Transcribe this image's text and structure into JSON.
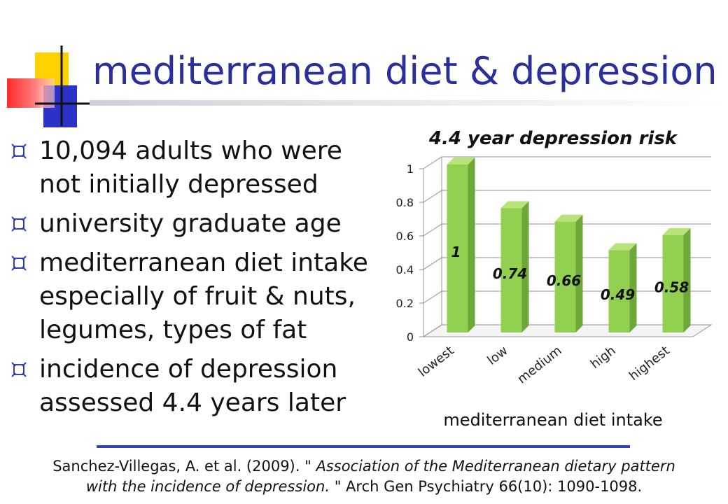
{
  "slide": {
    "title": "mediterranean diet & depression",
    "bullet_icon": "fancy-square-bullet-icon",
    "logo_icon": "color-squares-logo-icon",
    "colors": {
      "title": "#2b2f9c",
      "bar": "#92d050",
      "bar_dark": "#6fa83a",
      "rule": "#3540b6"
    },
    "bullets": [
      {
        "line1": "10,094 adults who were",
        "line2": "not initially depressed",
        "line3": ""
      },
      {
        "line1": "university graduate age",
        "line2": "",
        "line3": ""
      },
      {
        "line1": "mediterranean diet intake",
        "line2": "especially of fruit & nuts,",
        "line3": "legumes, types of fat"
      },
      {
        "line1": "incidence of depression",
        "line2": "assessed 4.4 years later",
        "line3": ""
      }
    ],
    "citation": {
      "authors": "Sanchez-Villegas, A. et al. (2009). ",
      "title_line1": "\" Association of the Mediterranean dietary pattern",
      "title_line2": "with the incidence of depression.",
      "journal": " \" Arch Gen Psychiatry 66(10): 1090-1098."
    }
  },
  "chart_data": {
    "type": "bar",
    "title": "4.4 year depression risk",
    "xlabel": "mediterranean diet intake",
    "ylabel": "",
    "categories": [
      "lowest",
      "low",
      "medium",
      "high",
      "highest"
    ],
    "values": [
      1,
      0.74,
      0.66,
      0.49,
      0.58
    ],
    "data_labels": [
      "1",
      "0.74",
      "0.66",
      "0.49",
      "0.58"
    ],
    "ylim": [
      0,
      1
    ],
    "y_ticks": [
      "0",
      "0.2",
      "0.4",
      "0.6",
      "0.8",
      "1"
    ],
    "grid": true,
    "legend": "none",
    "style": "3d-bar"
  }
}
